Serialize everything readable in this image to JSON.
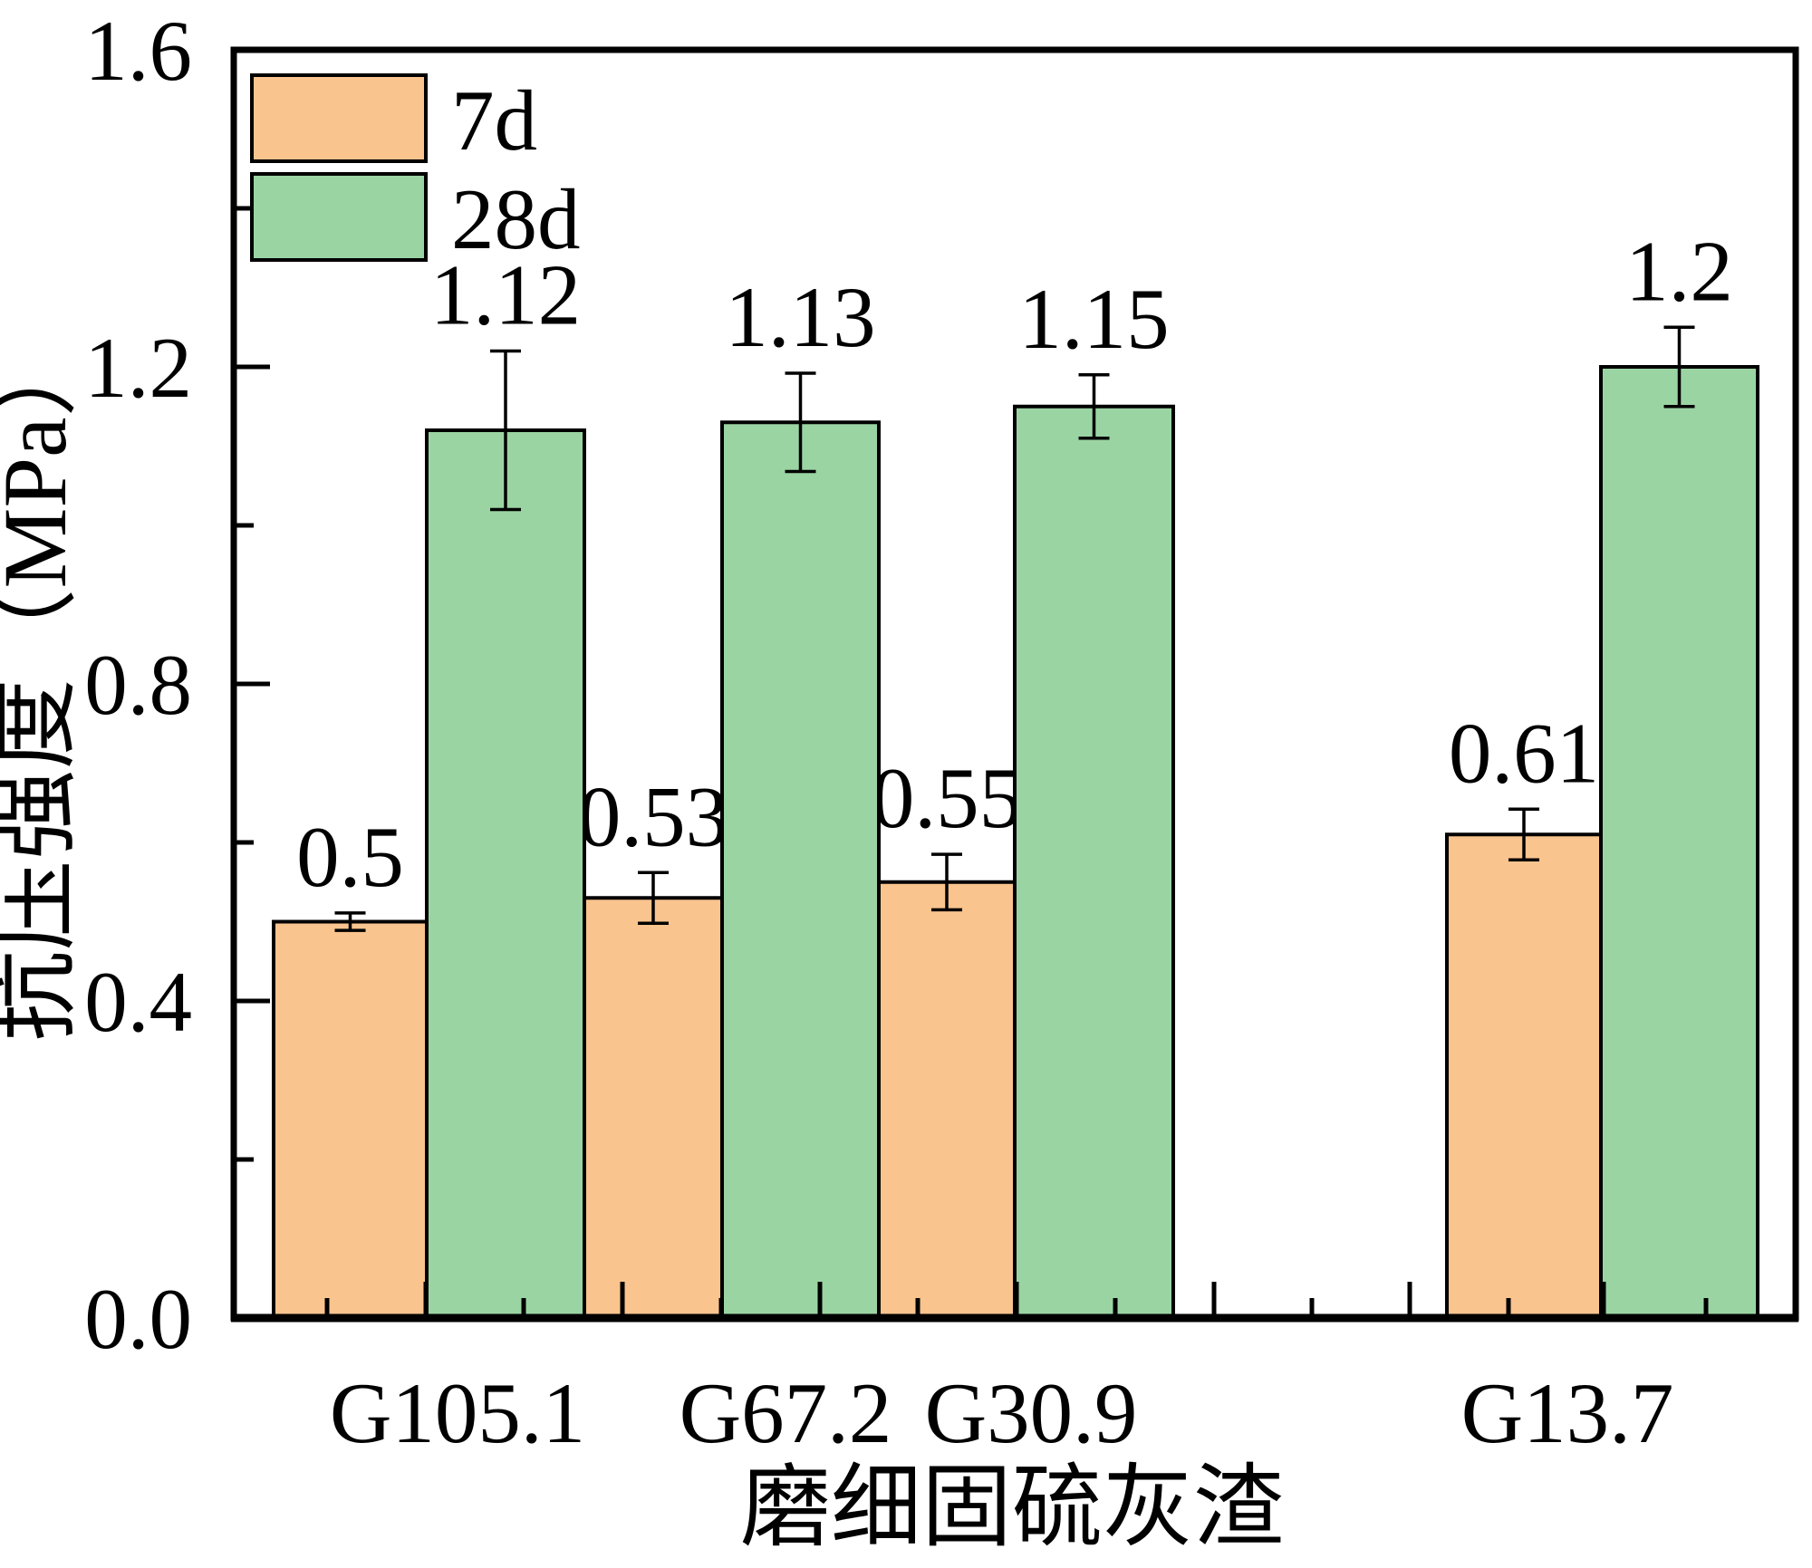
{
  "figure": {
    "background": "#ffffff",
    "frame_color": "#000000"
  },
  "chart_data": {
    "type": "bar",
    "title": "",
    "xlabel": "磨细固硫灰渣",
    "ylabel": "抗压强度（MPa）",
    "categories": [
      "G105.1",
      "G67.2",
      "G30.9",
      "G13.7"
    ],
    "ylim": [
      0,
      1.6
    ],
    "ytick_values": [
      0,
      0.4,
      0.8,
      1.2,
      1.6
    ],
    "ytick_labels": [
      "0.0",
      "0.4",
      "0.8",
      "1.2",
      "1.6"
    ],
    "yminor_values": [
      0.2,
      0.6,
      1.0,
      1.4
    ],
    "grid": false,
    "legend_position": "upper-left-inside",
    "error_bars": true,
    "series": [
      {
        "name": "7d",
        "color": "#FAC48E",
        "values": [
          0.5,
          0.53,
          0.55,
          0.61
        ],
        "errors": [
          0.011,
          0.032,
          0.035,
          0.032
        ],
        "labels": [
          "0.5",
          "0.53",
          "0.55",
          "0.61"
        ]
      },
      {
        "name": "28d",
        "color": "#9BD4A3",
        "values": [
          1.12,
          1.13,
          1.15,
          1.2
        ],
        "errors": [
          0.1,
          0.062,
          0.04,
          0.05
        ],
        "labels": [
          "1.12",
          "1.13",
          "1.15",
          "1.2"
        ]
      }
    ]
  }
}
